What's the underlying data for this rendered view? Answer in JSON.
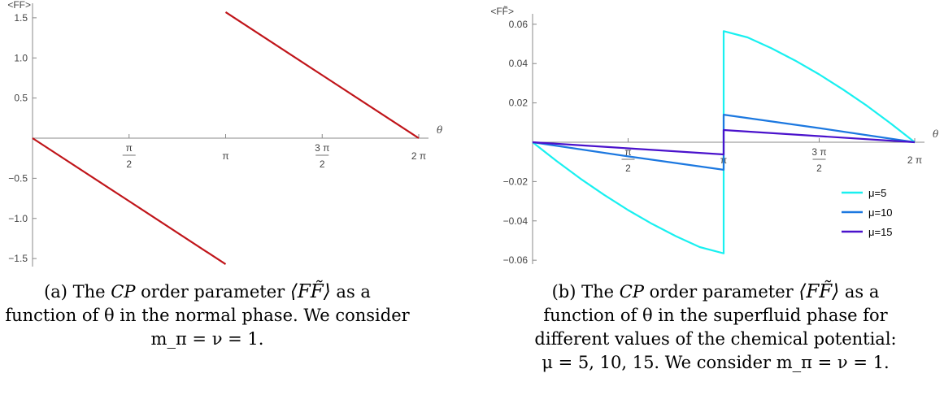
{
  "chart_data": [
    {
      "type": "line",
      "ylabel": "<FF>",
      "xlabel": "θ",
      "xlim": [
        0,
        6.2832
      ],
      "ylim": [
        -1.6,
        1.6
      ],
      "x_ticks": [
        {
          "value": 1.5708,
          "num": "π",
          "den": "2"
        },
        {
          "value": 3.1416,
          "num": "π",
          "den": ""
        },
        {
          "value": 4.7124,
          "num": "3 π",
          "den": "2"
        },
        {
          "value": 6.2832,
          "num": "2 π",
          "den": ""
        }
      ],
      "y_ticks": [
        {
          "value": 1.5,
          "label": "1.5"
        },
        {
          "value": 1.0,
          "label": "1.0"
        },
        {
          "value": 0.5,
          "label": "0.5"
        },
        {
          "value": -0.5,
          "label": "−0.5"
        },
        {
          "value": -1.0,
          "label": "−1.0"
        },
        {
          "value": -1.5,
          "label": "−1.5"
        }
      ],
      "series": [
        {
          "color": "#c0151a",
          "x": [
            0,
            1.5708,
            3.1416
          ],
          "y": [
            0,
            -0.785,
            -1.5708
          ]
        },
        {
          "color": "#c0151a",
          "x": [
            3.1416,
            4.7124,
            6.2832
          ],
          "y": [
            1.5708,
            0.785,
            0
          ]
        }
      ]
    },
    {
      "type": "line",
      "ylabel": "<FF̃>",
      "xlabel": "θ",
      "xlim": [
        0,
        6.2832
      ],
      "ylim": [
        -0.062,
        0.062
      ],
      "legend_position": "bottom-right",
      "x_ticks": [
        {
          "value": 1.5708,
          "num": "π",
          "den": "2"
        },
        {
          "value": 3.1416,
          "num": "π",
          "den": ""
        },
        {
          "value": 4.7124,
          "num": "3 π",
          "den": "2"
        },
        {
          "value": 6.2832,
          "num": "2 π",
          "den": ""
        }
      ],
      "y_ticks": [
        {
          "value": 0.06,
          "label": "0.06"
        },
        {
          "value": 0.04,
          "label": "0.04"
        },
        {
          "value": 0.02,
          "label": "0.02"
        },
        {
          "value": -0.02,
          "label": "−0.02"
        },
        {
          "value": -0.04,
          "label": "−0.04"
        },
        {
          "value": -0.06,
          "label": "−0.06"
        }
      ],
      "series": [
        {
          "name": "μ=5",
          "color": "#19f0f0",
          "x": [
            0,
            0.3927,
            0.7854,
            1.1781,
            1.5708,
            1.9635,
            2.3562,
            2.7489,
            3.1416,
            3.1416,
            3.5343,
            3.927,
            4.3197,
            4.7124,
            5.1051,
            5.4978,
            5.8905,
            6.2832
          ],
          "y": [
            0,
            -0.0095,
            -0.0185,
            -0.0268,
            -0.0345,
            -0.0415,
            -0.0478,
            -0.0533,
            -0.0565,
            0.0565,
            0.0533,
            0.0478,
            0.0415,
            0.0345,
            0.0268,
            0.0185,
            0.0095,
            0
          ]
        },
        {
          "name": "μ=10",
          "color": "#1c78e0",
          "x": [
            0,
            1.5708,
            3.1416,
            3.1416,
            4.7124,
            6.2832
          ],
          "y": [
            0,
            -0.0072,
            -0.014,
            0.014,
            0.0072,
            0
          ]
        },
        {
          "name": "μ=15",
          "color": "#4a12cc",
          "x": [
            0,
            1.5708,
            3.1416,
            3.1416,
            4.7124,
            6.2832
          ],
          "y": [
            0,
            -0.0031,
            -0.0062,
            0.0062,
            0.0031,
            0
          ]
        }
      ]
    }
  ],
  "captions": {
    "a": {
      "line1_pre": "(a) The ",
      "cp": "CP",
      "line1_mid": " order parameter ",
      "op": "⟨FF̃⟩",
      "line1_post": " as a",
      "line2": "function of θ in the normal phase. We consider",
      "line3": "m_π = ν = 1."
    },
    "b": {
      "line1_pre": "(b) The ",
      "cp": "CP",
      "line1_mid": " order parameter ",
      "op": "⟨FF̃⟩",
      "line1_post": " as a",
      "line2": "function of θ in the superfluid phase for",
      "line3": "different values of the chemical potential:",
      "line4": "μ = 5, 10, 15. We consider m_π = ν = 1."
    }
  }
}
